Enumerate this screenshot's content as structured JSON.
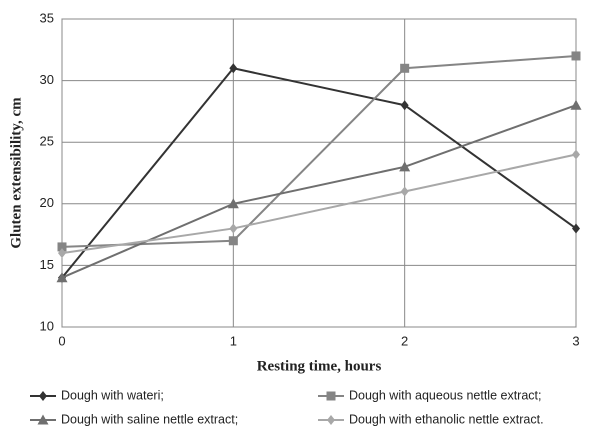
{
  "chart_data": {
    "type": "line",
    "x_label": "Resting time, hours",
    "y_label": "Gluten extensibility, cm",
    "x": [
      0,
      1,
      2,
      3
    ],
    "xlim": [
      0,
      3
    ],
    "xticks": [
      0,
      1,
      2,
      3
    ],
    "ylim": [
      10,
      35
    ],
    "yticks": [
      10,
      15,
      20,
      25,
      30,
      35
    ],
    "grid": true,
    "series": [
      {
        "name": "Dough with wateri;",
        "color": "#333333",
        "marker": "diamond",
        "values": [
          14,
          31,
          28,
          18
        ]
      },
      {
        "name": "Dough with aqueous nettle extract;",
        "color": "#858585",
        "marker": "square",
        "values": [
          16.5,
          17,
          31,
          32
        ]
      },
      {
        "name": "Dough with saline nettle extract;",
        "color": "#6f6f6f",
        "marker": "triangle",
        "values": [
          14,
          20,
          23,
          28
        ]
      },
      {
        "name": "Dough with ethanolic nettle extract.",
        "color": "#a8a8a8",
        "marker": "diamond",
        "values": [
          16,
          18,
          21,
          24
        ]
      }
    ]
  }
}
